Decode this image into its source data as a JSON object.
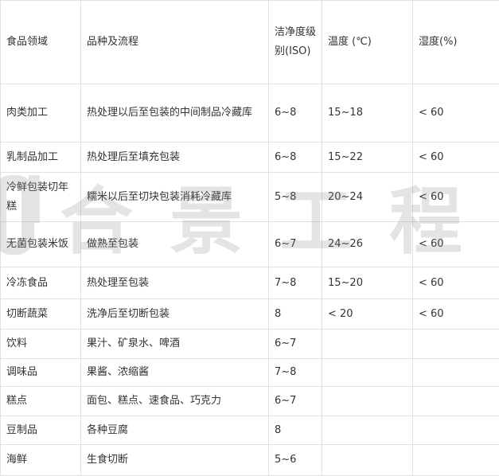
{
  "headers": [
    "食品领域",
    "品种及流程",
    "洁净度级别(ISO)",
    "温度 (℃)",
    "湿度(%)"
  ],
  "rows": [
    [
      "肉类加工",
      "热处理以后至包装的中间制品冷藏库",
      "6~8",
      "15~18",
      "< 60"
    ],
    [
      "乳制品加工",
      "热处理后至填充包装",
      "6~8",
      "15~22",
      "< 60"
    ],
    [
      "冷鲜包装切年糕",
      "糯米以后至切块包装消耗冷藏库",
      "5~8",
      "20~24",
      "< 60"
    ],
    [
      "无菌包装米饭",
      "做熟至包装",
      "6~7",
      "24~26",
      "< 60"
    ],
    [
      "冷冻食品",
      "热处理至包装",
      "7~8",
      "15~20",
      "< 60"
    ],
    [
      "切断蔬菜",
      "洗净后至切断包装",
      "8",
      "< 20",
      "< 60"
    ],
    [
      "饮料",
      "果汁、矿泉水、啤酒",
      "6~7",
      "",
      ""
    ],
    [
      "调味品",
      "果酱、浓缩酱",
      "7~8",
      "",
      ""
    ],
    [
      "糕点",
      "面包、糕点、速食品、巧克力",
      "6~7",
      "",
      ""
    ],
    [
      "豆制品",
      "各种豆腐",
      "8",
      "",
      ""
    ],
    [
      "海鲜",
      "生食切断",
      "5~6",
      "",
      ""
    ]
  ],
  "watermark": "合景工程"
}
